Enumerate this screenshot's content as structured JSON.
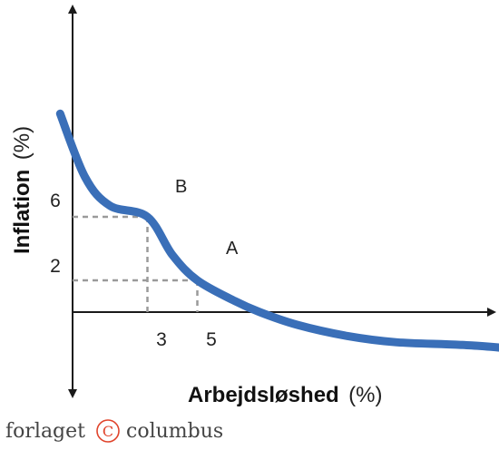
{
  "chart_data": {
    "type": "line",
    "title": "",
    "xlabel": {
      "bold": "Arbejdsløshed",
      "unit": "(%)"
    },
    "ylabel": {
      "bold": "Inflation",
      "unit": "(%)"
    },
    "x_ticks": [
      "3",
      "5"
    ],
    "y_ticks": [
      "6",
      "2"
    ],
    "series": [
      {
        "color": "#3a6fb8",
        "points": [
          [
            -0.5,
            12.5
          ],
          [
            0.5,
            8.5
          ],
          [
            1.5,
            6.7
          ],
          [
            3,
            6
          ],
          [
            4,
            3.6
          ],
          [
            5,
            2
          ],
          [
            6.5,
            0.7
          ],
          [
            7.5,
            0
          ],
          [
            9,
            -0.8
          ],
          [
            11,
            -1.5
          ],
          [
            13,
            -1.9
          ],
          [
            16,
            -2.1
          ],
          [
            19,
            -2.5
          ]
        ]
      }
    ],
    "annotations": [
      {
        "label": "B",
        "x": 3,
        "y": 6
      },
      {
        "label": "A",
        "x": 5,
        "y": 2
      }
    ],
    "grid": false
  },
  "logo": {
    "left": "forlaget",
    "mark": "C",
    "right": "columbus"
  }
}
